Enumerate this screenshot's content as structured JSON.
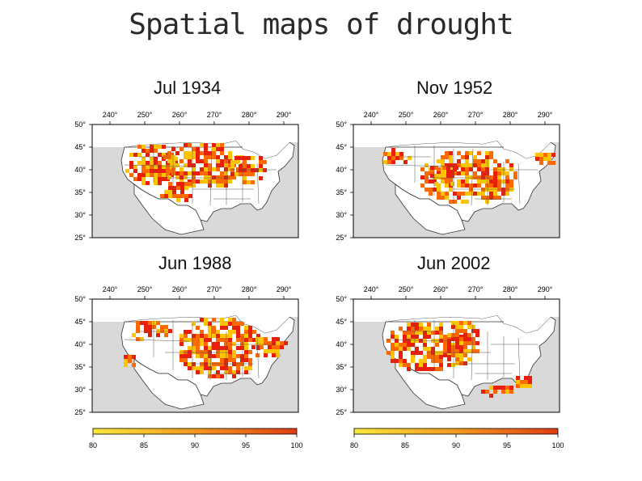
{
  "title": "Spatial maps of drought",
  "maps": [
    {
      "label": "Jul 1934",
      "lon_ticks": [
        "240°",
        "250°",
        "260°",
        "270°",
        "280°",
        "290°"
      ],
      "lat_ticks": [
        "50°",
        "45°",
        "40°",
        "35°",
        "30°",
        "25°"
      ]
    },
    {
      "label": "Nov 1952",
      "lon_ticks": [
        "240°",
        "250°",
        "260°",
        "270°",
        "280°",
        "290°"
      ],
      "lat_ticks": [
        "50°",
        "45°",
        "40°",
        "35°",
        "30°",
        "25°"
      ]
    },
    {
      "label": "Jun 1988",
      "lon_ticks": [
        "240°",
        "250°",
        "260°",
        "270°",
        "280°",
        "290°"
      ],
      "lat_ticks": [
        "50°",
        "45°",
        "40°",
        "35°",
        "30°",
        "25°"
      ]
    },
    {
      "label": "Jun 2002",
      "lon_ticks": [
        "240°",
        "250°",
        "260°",
        "270°",
        "280°",
        "290°"
      ],
      "lat_ticks": [
        "50°",
        "45°",
        "40°",
        "35°",
        "30°",
        "25°"
      ]
    }
  ],
  "colorbar": {
    "ticks": [
      "80",
      "85",
      "90",
      "95",
      "100"
    ],
    "min": 80,
    "max": 100,
    "colors": [
      "#fbe83a",
      "#e03c14"
    ]
  },
  "colors": {
    "land_drought_low": "#ffc400",
    "land_drought_mid": "#ff6a00",
    "land_drought_high": "#e8200a",
    "ocean": "#d9d9d9",
    "land": "#ffffff"
  }
}
